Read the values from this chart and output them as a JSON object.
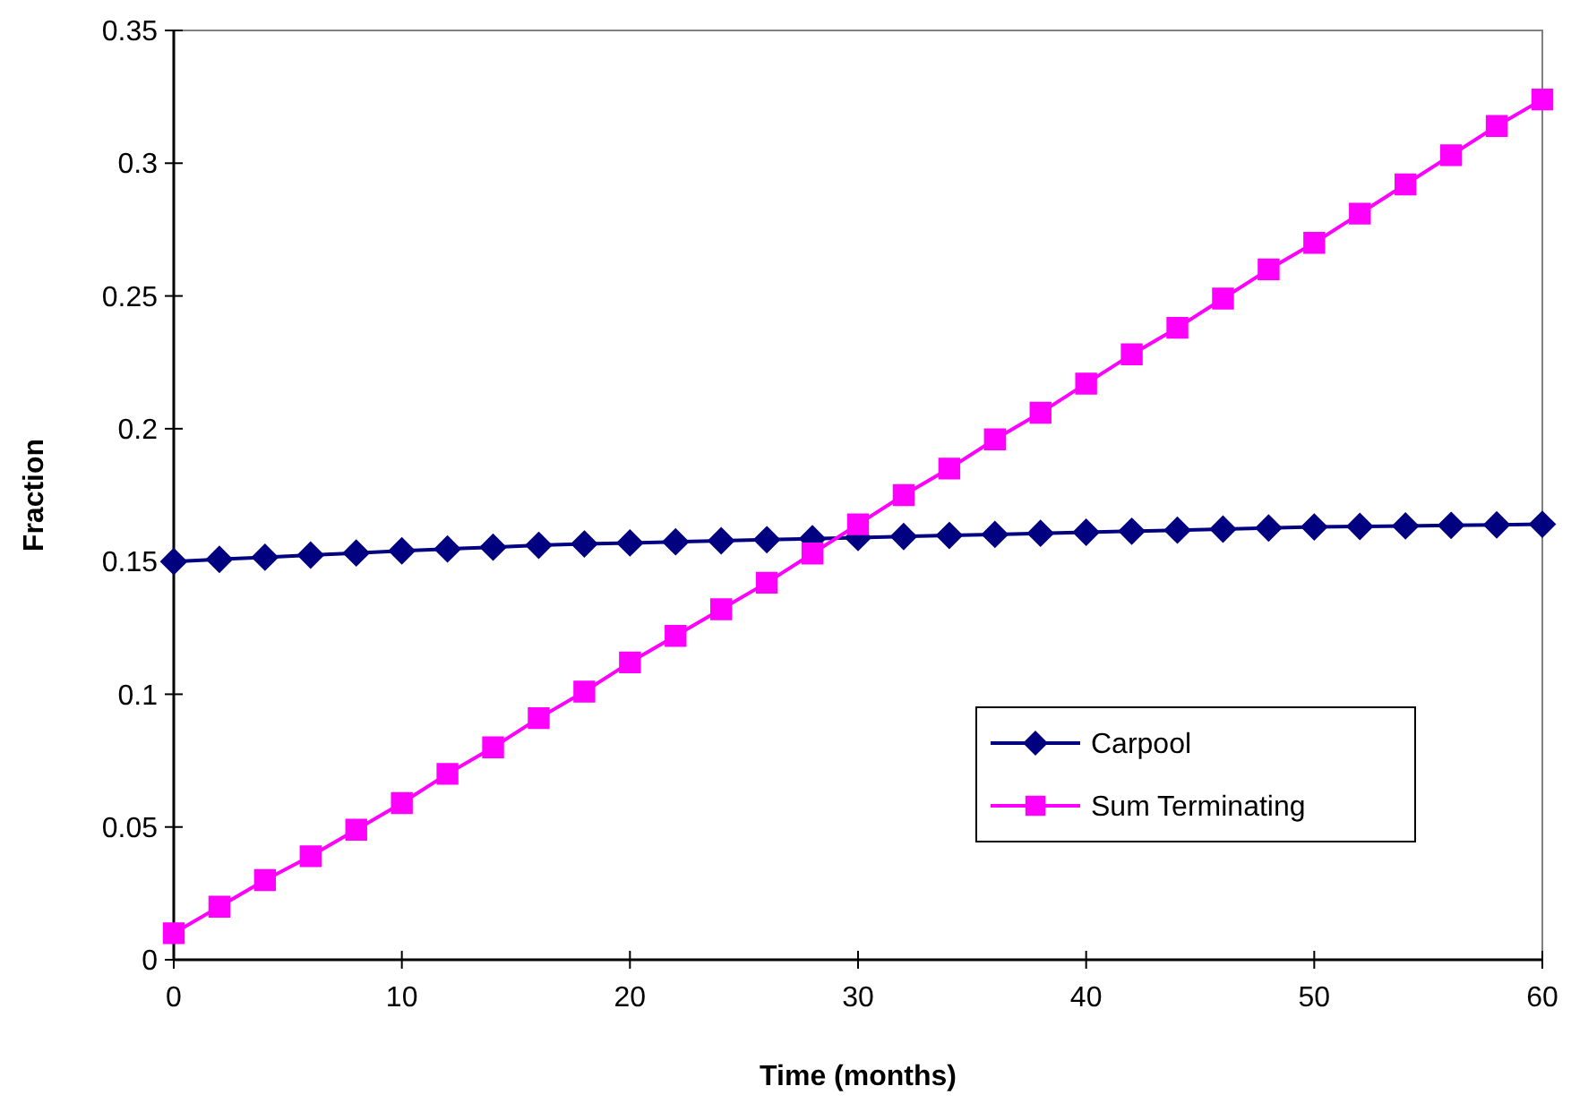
{
  "chart_data": {
    "type": "line",
    "xlabel": "Time (months)",
    "ylabel": "Fraction",
    "x": [
      0,
      2,
      4,
      6,
      8,
      10,
      12,
      14,
      16,
      18,
      20,
      22,
      24,
      26,
      28,
      30,
      32,
      34,
      36,
      38,
      40,
      42,
      44,
      46,
      48,
      50,
      52,
      54,
      56,
      58,
      60
    ],
    "series": [
      {
        "name": "Carpool",
        "color": "#000080",
        "marker": "diamond",
        "values": [
          0.15,
          0.1508,
          0.1516,
          0.1524,
          0.1532,
          0.154,
          0.1547,
          0.1554,
          0.1561,
          0.1566,
          0.157,
          0.1574,
          0.1578,
          0.1582,
          0.1586,
          0.159,
          0.1594,
          0.1598,
          0.1602,
          0.1606,
          0.161,
          0.1614,
          0.1618,
          0.1622,
          0.1626,
          0.163,
          0.1632,
          0.1634,
          0.1636,
          0.1638,
          0.164
        ]
      },
      {
        "name": "Sum Terminating",
        "color": "#ff00ff",
        "marker": "square",
        "values": [
          0.01,
          0.02,
          0.03,
          0.039,
          0.049,
          0.059,
          0.07,
          0.08,
          0.091,
          0.101,
          0.112,
          0.122,
          0.132,
          0.142,
          0.153,
          0.164,
          0.175,
          0.185,
          0.196,
          0.206,
          0.217,
          0.228,
          0.238,
          0.249,
          0.26,
          0.27,
          0.281,
          0.292,
          0.303,
          0.314,
          0.324
        ]
      }
    ],
    "xlim": [
      0,
      60
    ],
    "xticks": [
      0,
      10,
      20,
      30,
      40,
      50,
      60
    ],
    "ylim": [
      0,
      0.35
    ],
    "yticks": [
      0,
      0.05,
      0.1,
      0.15,
      0.2,
      0.25,
      0.3,
      0.35
    ],
    "grid": false,
    "legend": "right",
    "line_style": "solid"
  }
}
